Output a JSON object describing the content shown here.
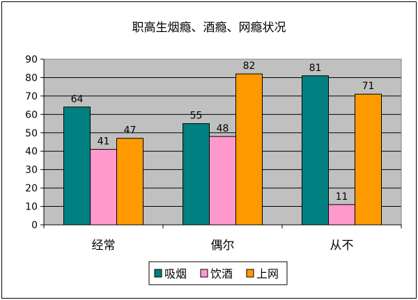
{
  "chart_data": {
    "type": "bar",
    "title": "职高生烟瘾、酒瘾、网瘾状况",
    "xlabel": "",
    "ylabel": "",
    "categories": [
      "经常",
      "偶尔",
      "从不"
    ],
    "series": [
      {
        "name": "吸烟",
        "values": [
          64,
          55,
          81
        ],
        "color": "#008080"
      },
      {
        "name": "饮酒",
        "values": [
          41,
          48,
          11
        ],
        "color": "#FF99CC"
      },
      {
        "name": "上网",
        "values": [
          47,
          82,
          71
        ],
        "color": "#FF9900"
      }
    ],
    "ylim": [
      0,
      90
    ],
    "yticks": [
      0,
      10,
      20,
      30,
      40,
      50,
      60,
      70,
      80,
      90
    ],
    "grid": true,
    "plot_background": "#C0C0C0",
    "legend_position": "bottom"
  }
}
